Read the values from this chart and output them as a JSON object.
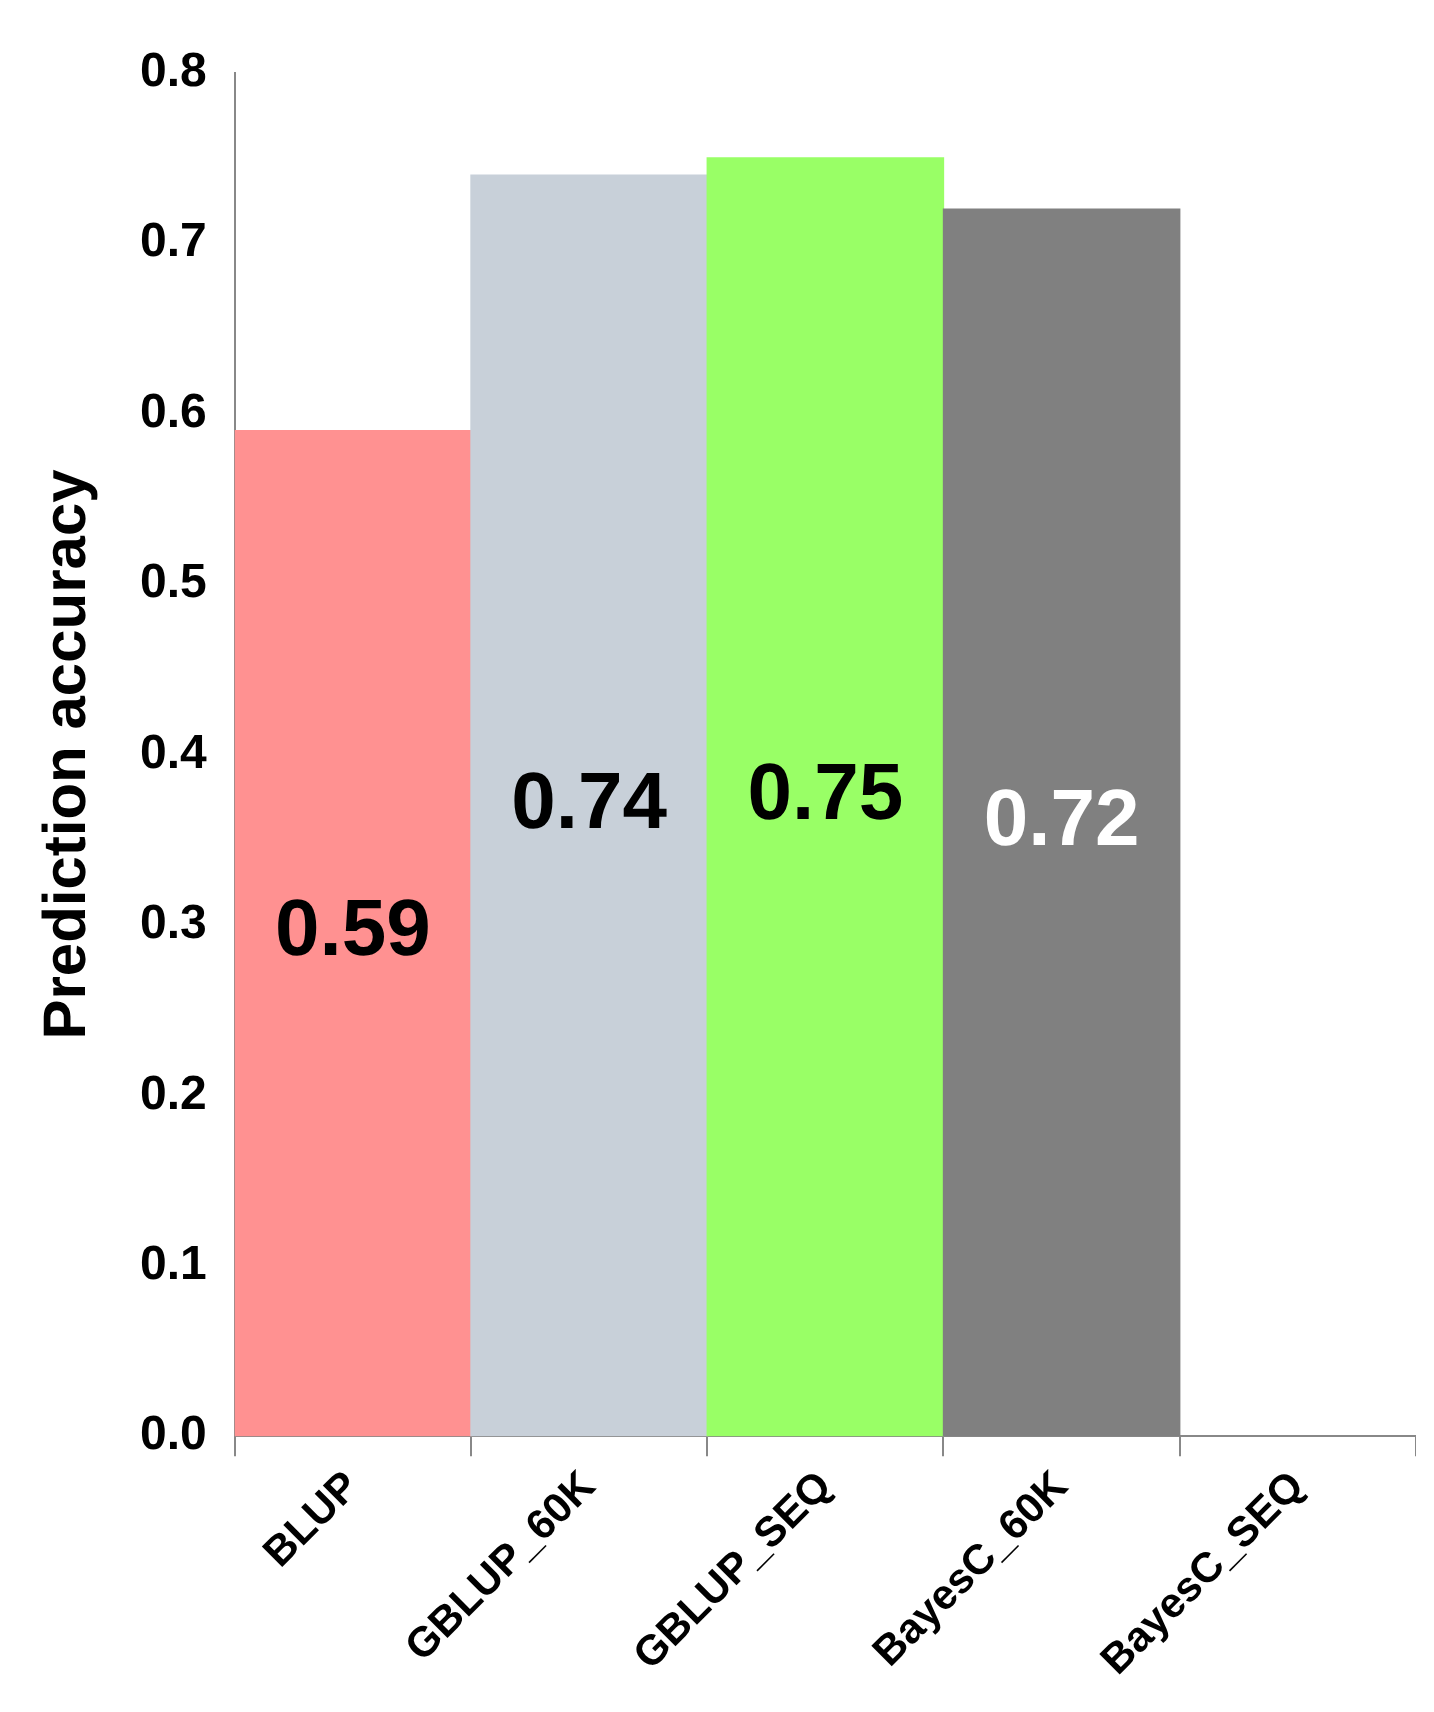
{
  "chart_data": {
    "type": "bar",
    "ylabel": "Prediction accuracy",
    "categories": [
      "BLUP",
      "GBLUP_60K",
      "GBLUP_SEQ",
      "BayesC_60K",
      "BayesC_SEQ"
    ],
    "values": [
      0.59,
      0.74,
      0.75,
      0.72,
      null
    ],
    "colors": [
      "#ff9191",
      "#c8d0d9",
      "#99ff66",
      "#808080",
      "#808080"
    ],
    "ylim": [
      0,
      0.8
    ],
    "yticks": [
      {
        "value": 0,
        "label": "0.0"
      },
      0.1,
      0.2,
      0.3,
      0.4,
      0.5,
      0.6,
      0.7,
      0.8
    ],
    "data_labels": true,
    "grid": false,
    "legend": false
  }
}
